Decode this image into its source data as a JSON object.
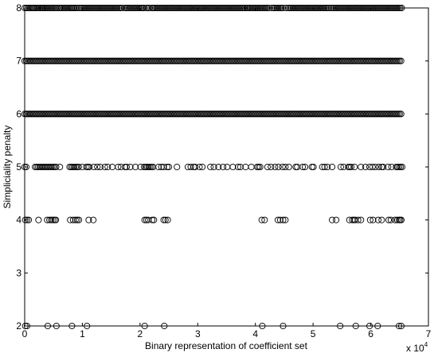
{
  "chart_data": {
    "type": "scatter",
    "title": "",
    "xlabel": "Binary representation of coefficient set",
    "ylabel": "Simpliciality penalty",
    "x_multiplier_label": "x 10",
    "x_multiplier_exp": "4",
    "xlim": [
      0,
      70000
    ],
    "ylim": [
      2,
      8
    ],
    "xticks": [
      0,
      10000,
      20000,
      30000,
      40000,
      50000,
      60000,
      70000
    ],
    "xtick_labels": [
      "0",
      "1",
      "2",
      "3",
      "4",
      "5",
      "6",
      "7"
    ],
    "yticks": [
      2,
      3,
      4,
      5,
      6,
      7,
      8
    ],
    "ytick_labels": [
      "2",
      "3",
      "4",
      "5",
      "6",
      "7",
      "8"
    ],
    "grid": false,
    "marker": "open circle",
    "series": [
      {
        "y": 2,
        "x": [
          100,
          400,
          4000,
          5500,
          8200,
          10800,
          20800,
          24200,
          41200,
          44800,
          54700,
          57400,
          59800,
          61200,
          64900,
          65300
        ]
      },
      {
        "y": 4,
        "x": [
          100,
          400,
          700,
          2400,
          3900,
          4300,
          4600,
          4900,
          5200,
          5400,
          7900,
          8400,
          8800,
          9100,
          9400,
          11100,
          11900,
          20800,
          21100,
          21400,
          22100,
          22400,
          24100,
          24400,
          24800,
          41100,
          41600,
          43900,
          44300,
          44800,
          45200,
          53300,
          54000,
          56300,
          56800,
          57100,
          57300,
          57800,
          58300,
          59900,
          60400,
          61300,
          61900,
          63100,
          63500,
          64200,
          64600,
          64900,
          65100,
          65300
        ]
      },
      {
        "y": 5,
        "x_dense": [
          [
            0,
            500
          ],
          [
            1800,
            5500
          ],
          [
            7800,
            9600
          ],
          [
            10700,
            11300
          ],
          [
            17400,
            17800
          ],
          [
            20700,
            22500
          ],
          [
            29300,
            29700
          ],
          [
            40300,
            41000
          ],
          [
            47000,
            47400
          ],
          [
            49800,
            50300
          ],
          [
            56100,
            56700
          ],
          [
            61900,
            62400
          ],
          [
            64400,
            65500
          ]
        ],
        "x": [
          6100,
          10000,
          12000,
          12600,
          13100,
          13900,
          14400,
          15200,
          16200,
          16700,
          18300,
          19200,
          20100,
          23200,
          23700,
          24100,
          24700,
          25000,
          26400,
          28300,
          28800,
          30300,
          30800,
          32200,
          32800,
          33600,
          34400,
          35100,
          36100,
          37000,
          37400,
          38300,
          39300,
          42100,
          42700,
          43400,
          44000,
          44700,
          45200,
          45800,
          48200,
          48600,
          51600,
          52000,
          52500,
          53300,
          54800,
          55300,
          57200,
          58300,
          59100,
          59800,
          60300,
          60800,
          61400,
          63000,
          63600
        ]
      },
      {
        "y": 6,
        "x_dense": [
          [
            0,
            65500
          ]
        ],
        "x": []
      },
      {
        "y": 7,
        "x_dense": [
          [
            0,
            65500
          ]
        ],
        "x": []
      },
      {
        "y": 8,
        "x_dense": [
          [
            0,
            1400
          ],
          [
            1700,
            3000
          ],
          [
            3300,
            5800
          ],
          [
            6100,
            8200
          ],
          [
            8600,
            9200
          ],
          [
            9800,
            17000
          ],
          [
            17600,
            20100
          ],
          [
            20400,
            20800
          ],
          [
            21400,
            21900
          ],
          [
            22300,
            38200
          ],
          [
            38700,
            41300
          ],
          [
            41800,
            42500
          ],
          [
            43200,
            44800
          ],
          [
            45700,
            52800
          ],
          [
            53400,
            65500
          ]
        ],
        "x": [
          1500,
          3100,
          6000,
          8400,
          9500,
          17300,
          20200,
          21100,
          22100,
          38500,
          41600,
          42900,
          45300,
          53100
        ]
      }
    ]
  }
}
